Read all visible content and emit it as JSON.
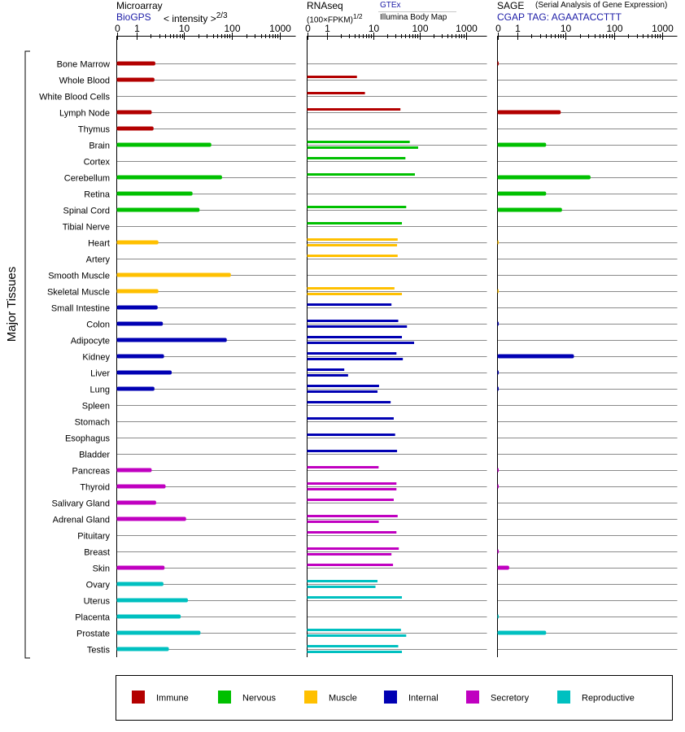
{
  "chart_data": {
    "type": "bar",
    "axis_label": "Major Tissues",
    "tick_labels": [
      "0",
      "1",
      "10",
      "100",
      "1000"
    ],
    "tick_values": [
      0,
      1,
      10,
      100,
      1000
    ],
    "tissues": [
      "Bone Marrow",
      "Whole Blood",
      "White Blood Cells",
      "Lymph Node",
      "Thymus",
      "Brain",
      "Cortex",
      "Cerebellum",
      "Retina",
      "Spinal Cord",
      "Tibial Nerve",
      "Heart",
      "Artery",
      "Smooth Muscle",
      "Skeletal Muscle",
      "Small Intestine",
      "Colon",
      "Adipocyte",
      "Kidney",
      "Liver",
      "Lung",
      "Spleen",
      "Stomach",
      "Esophagus",
      "Bladder",
      "Pancreas",
      "Thyroid",
      "Salivary Gland",
      "Adrenal Gland",
      "Pituitary",
      "Breast",
      "Skin",
      "Ovary",
      "Uterus",
      "Placenta",
      "Prostate",
      "Testis"
    ],
    "tissue_groups": [
      "immune",
      "immune",
      "immune",
      "immune",
      "immune",
      "nervous",
      "nervous",
      "nervous",
      "nervous",
      "nervous",
      "nervous",
      "muscle",
      "muscle",
      "muscle",
      "muscle",
      "internal",
      "internal",
      "internal",
      "internal",
      "internal",
      "internal",
      "internal",
      "internal",
      "internal",
      "internal",
      "secretory",
      "secretory",
      "secretory",
      "secretory",
      "secretory",
      "secretory",
      "secretory",
      "reproductive",
      "reproductive",
      "reproductive",
      "reproductive",
      "reproductive"
    ],
    "groups": [
      {
        "key": "immune",
        "name": "Immune",
        "color": "#b30000"
      },
      {
        "key": "nervous",
        "name": "Nervous",
        "color": "#00c000"
      },
      {
        "key": "muscle",
        "name": "Muscle",
        "color": "#ffc000"
      },
      {
        "key": "internal",
        "name": "Internal",
        "color": "#0000b3"
      },
      {
        "key": "secretory",
        "name": "Secretory",
        "color": "#c000c0"
      },
      {
        "key": "reproductive",
        "name": "Reproductive",
        "color": "#00c0c0"
      }
    ],
    "panels": [
      {
        "id": "microarray",
        "title": "Microarray",
        "source": "BioGPS",
        "unit": "< intensity >",
        "unit_exponent": "2/3",
        "values": [
          2.5,
          2.4,
          null,
          2.1,
          2.3,
          37,
          null,
          62,
          15,
          21,
          null,
          2.9,
          null,
          95,
          2.9,
          2.8,
          3.6,
          78,
          3.8,
          5.5,
          2.4,
          null,
          null,
          null,
          null,
          2.1,
          4.1,
          2.6,
          11,
          null,
          null,
          3.9,
          3.7,
          12,
          8.5,
          22,
          4.8
        ]
      },
      {
        "id": "rnaseq",
        "title": "RNAseq",
        "unit": "(100×FPKM)",
        "unit_exponent": "1/2",
        "source_a": "GTEx",
        "source_b": "Illumina Body Map",
        "values_gtex": [
          null,
          4.5,
          6.7,
          39,
          null,
          62,
          50,
          80,
          null,
          52,
          42,
          34,
          34,
          null,
          29,
          25,
          35,
          42,
          32,
          2.4,
          13.5,
          24,
          28,
          30,
          33,
          13.2,
          32,
          28,
          34,
          32,
          36,
          27,
          12.5,
          42,
          null,
          40,
          35
        ],
        "values_ibm": [
          null,
          null,
          null,
          null,
          null,
          94,
          null,
          null,
          null,
          null,
          null,
          33,
          null,
          null,
          42,
          null,
          54,
          77,
          44,
          2.9,
          12.5,
          null,
          null,
          null,
          null,
          null,
          32,
          null,
          13.3,
          null,
          25,
          null,
          11.3,
          null,
          null,
          52,
          42
        ]
      },
      {
        "id": "sage",
        "title": "SAGE",
        "subtitle": "(Serial Analysis of Gene Expression)",
        "tag": "CGAP TAG: AGAATACCTTT",
        "values": [
          0.05,
          null,
          null,
          8,
          null,
          4,
          null,
          33,
          4,
          8.5,
          null,
          0.02,
          null,
          null,
          0.02,
          null,
          0.04,
          null,
          15,
          0.04,
          0.04,
          null,
          null,
          null,
          null,
          0.04,
          0.04,
          null,
          null,
          null,
          0.04,
          0.6,
          null,
          null,
          0.02,
          4,
          null
        ]
      }
    ]
  },
  "legend": [
    {
      "label": "Immune",
      "color": "#b30000"
    },
    {
      "label": "Nervous",
      "color": "#00c000"
    },
    {
      "label": "Muscle",
      "color": "#ffc000"
    },
    {
      "label": "Internal",
      "color": "#0000b3"
    },
    {
      "label": "Secretory",
      "color": "#c000c0"
    },
    {
      "label": "Reproductive",
      "color": "#00c0c0"
    }
  ]
}
